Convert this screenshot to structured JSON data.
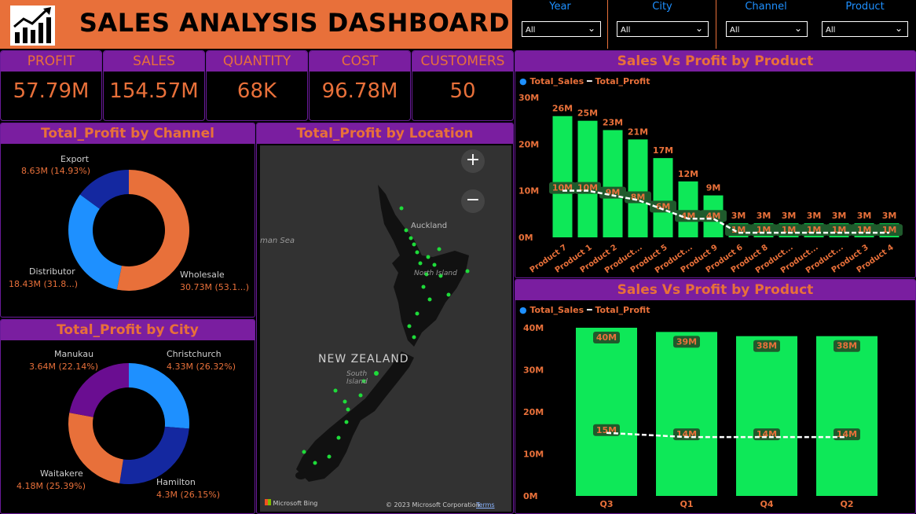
{
  "header": {
    "title": "SALES ANALYSIS DASHBOARD"
  },
  "slicers": [
    {
      "label": "Year",
      "value": "All"
    },
    {
      "label": "City",
      "value": "All"
    },
    {
      "label": "Channel",
      "value": "All"
    },
    {
      "label": "Product",
      "value": "All"
    }
  ],
  "kpis": [
    {
      "label": "PROFIT",
      "value": "57.79M"
    },
    {
      "label": "SALES",
      "value": "154.57M"
    },
    {
      "label": "QUANTITY",
      "value": "68K"
    },
    {
      "label": "COST",
      "value": "96.78M"
    },
    {
      "label": "CUSTOMERS",
      "value": "50"
    }
  ],
  "colors": {
    "orange": "#e8703a",
    "purple": "#7a1ea0",
    "green": "#0ee858",
    "blue": "#1e90ff",
    "navy": "#1428a0"
  },
  "map": {
    "title": "Total_Profit by Location",
    "country_label": "NEW ZEALAND",
    "places": {
      "auckland": "Auckland",
      "north_island": "North Island",
      "south_island": "South Island",
      "sea": "man Sea"
    },
    "zoom_in": "+",
    "zoom_out": "−",
    "attribution": "© 2023 Microsoft Corporation",
    "terms": "Terms",
    "bing": "Microsoft Bing"
  },
  "chart_data": [
    {
      "type": "pie",
      "title": "Total_Profit by Channel",
      "slices": [
        {
          "name": "Wholesale",
          "value": 30.73,
          "label": "30.73M (53.1...)",
          "color": "#e8703a"
        },
        {
          "name": "Distributor",
          "value": 18.43,
          "label": "18.43M (31.8...)",
          "color": "#1e90ff"
        },
        {
          "name": "Export",
          "value": 8.63,
          "label": "8.63M (14.93%)",
          "color": "#1428a0"
        }
      ]
    },
    {
      "type": "pie",
      "title": "Total_Profit by City",
      "slices": [
        {
          "name": "Christchurch",
          "value": 4.33,
          "label": "4.33M (26.32%)",
          "color": "#1e90ff"
        },
        {
          "name": "Hamilton",
          "value": 4.3,
          "label": "4.3M (26.15%)",
          "color": "#1428a0"
        },
        {
          "name": "Waitakere",
          "value": 4.18,
          "label": "4.18M (25.39%)",
          "color": "#e8703a"
        },
        {
          "name": "Manukau",
          "value": 3.64,
          "label": "3.64M (22.14%)",
          "color": "#6a0d91"
        }
      ]
    },
    {
      "type": "bar",
      "title": "Sales Vs Profit by Product",
      "legend": [
        "Total_Sales",
        "Total_Profit"
      ],
      "categories": [
        "Product 7",
        "Product 1",
        "Product 2",
        "Product...",
        "Product 5",
        "Product...",
        "Product 9",
        "Product 6",
        "Product 8",
        "Product...",
        "Product...",
        "Product...",
        "Product 3",
        "Product 4"
      ],
      "series": [
        {
          "name": "Total_Sales",
          "values": [
            26,
            25,
            23,
            21,
            17,
            12,
            9,
            3,
            3,
            3,
            3,
            3,
            3,
            3
          ],
          "labels": [
            "26M",
            "25M",
            "23M",
            "21M",
            "17M",
            "12M",
            "9M",
            "3M",
            "3M",
            "3M",
            "3M",
            "3M",
            "3M",
            "3M"
          ]
        },
        {
          "name": "Total_Profit",
          "values": [
            10,
            10,
            9,
            8,
            6,
            4,
            4,
            1,
            1,
            1,
            1,
            1,
            1,
            1
          ],
          "labels": [
            "10M",
            "10M",
            "9M",
            "8M",
            "6M",
            "4M",
            "4M",
            "1M",
            "1M",
            "1M",
            "1M",
            "1M",
            "1M",
            "1M"
          ]
        }
      ],
      "yticks": [
        "0M",
        "10M",
        "20M",
        "30M"
      ],
      "ylim": [
        0,
        30
      ]
    },
    {
      "type": "bar",
      "title": "Sales Vs Profit by Product",
      "legend": [
        "Total_Sales",
        "Total_Profit"
      ],
      "categories": [
        "Q3",
        "Q1",
        "Q4",
        "Q2"
      ],
      "series": [
        {
          "name": "Total_Sales",
          "values": [
            40,
            39,
            38,
            38
          ],
          "labels": [
            "40M",
            "39M",
            "38M",
            "38M"
          ]
        },
        {
          "name": "Total_Profit",
          "values": [
            15,
            14,
            14,
            14
          ],
          "labels": [
            "15M",
            "14M",
            "14M",
            "14M"
          ]
        }
      ],
      "yticks": [
        "0M",
        "10M",
        "20M",
        "30M",
        "40M"
      ],
      "ylim": [
        0,
        40
      ]
    }
  ]
}
